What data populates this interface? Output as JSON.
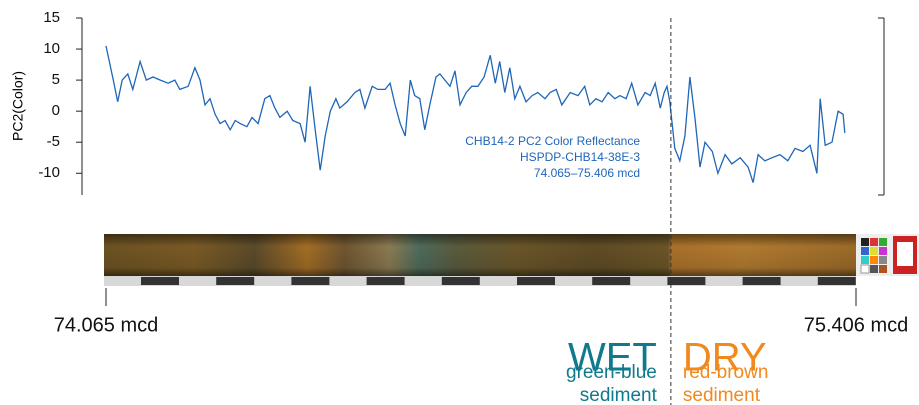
{
  "chart_data": {
    "type": "line",
    "y_label": "PC2(Color)",
    "color": "#1f66b8",
    "x": [
      74.065,
      74.078,
      74.086,
      74.094,
      74.104,
      74.113,
      74.126,
      74.137,
      74.149,
      74.162,
      74.176,
      74.188,
      74.197,
      74.212,
      74.224,
      74.233,
      74.242,
      74.251,
      74.26,
      74.269,
      74.278,
      74.287,
      74.296,
      74.305,
      74.317,
      74.326,
      74.337,
      74.349,
      74.358,
      74.367,
      74.376,
      74.389,
      74.399,
      74.412,
      74.421,
      74.43,
      74.439,
      74.448,
      74.457,
      74.466,
      74.476,
      74.483,
      74.496,
      74.51,
      74.519,
      74.528,
      74.541,
      74.551,
      74.564,
      74.573,
      74.582,
      74.591,
      74.6,
      74.609,
      74.617,
      74.626,
      74.635,
      74.644,
      74.655,
      74.662,
      74.671,
      74.68,
      74.689,
      74.698,
      74.709,
      74.719,
      74.73,
      74.741,
      74.752,
      74.761,
      74.769,
      74.778,
      74.787,
      74.796,
      74.805,
      74.816,
      74.827,
      74.837,
      74.85,
      74.859,
      74.87,
      74.88,
      74.895,
      74.909,
      74.921,
      74.93,
      74.941,
      74.952,
      74.963,
      74.975,
      74.984,
      74.995,
      75.005,
      75.016,
      75.029,
      75.038,
      75.047,
      75.056,
      75.063,
      75.068,
      75.073,
      75.082,
      75.091,
      75.1,
      75.109,
      75.118,
      75.127,
      75.136,
      75.149,
      75.159,
      75.172,
      75.184,
      75.199,
      75.213,
      75.222,
      75.231,
      75.243,
      75.256,
      75.27,
      75.284,
      75.297,
      75.311,
      75.324,
      75.336,
      75.342,
      75.351,
      75.363,
      75.374,
      75.383,
      75.386
    ],
    "values": [
      10.5,
      5,
      1.5,
      5,
      6,
      3.5,
      8,
      5,
      5.5,
      5,
      4.5,
      5,
      3.5,
      4,
      7,
      5,
      1,
      2,
      -0.5,
      -2,
      -1.5,
      -3,
      -1.5,
      -2,
      -2.5,
      -1,
      -2,
      2,
      2.5,
      0.5,
      -1,
      0,
      -1.5,
      -2,
      -5,
      4,
      -3,
      -9.5,
      -4,
      0,
      2,
      0.5,
      1.5,
      3,
      3.5,
      0.5,
      4,
      3.5,
      3.5,
      4.5,
      1,
      -2,
      -4,
      5,
      2.5,
      2,
      -3,
      1,
      5.5,
      6,
      5,
      4,
      6.5,
      1,
      3,
      4,
      4,
      5.5,
      9,
      4.5,
      8,
      3,
      7,
      2,
      4,
      1.5,
      2.5,
      3,
      2,
      3,
      3.5,
      1,
      3,
      2.5,
      4,
      1,
      2,
      1.5,
      3,
      2,
      2.5,
      2,
      4.5,
      1,
      3,
      2.5,
      4.5,
      0.5,
      3,
      4,
      1.5,
      -6,
      -8,
      -4,
      5.5,
      -1,
      -9,
      -5,
      -6.5,
      -10,
      -7,
      -8.5,
      -7.5,
      -9,
      -11.5,
      -7,
      -8,
      -7.5,
      -7,
      -8,
      -6,
      -6.5,
      -5.5,
      -10,
      2,
      -5.5,
      -5,
      0,
      -0.5,
      -3.5
    ],
    "ylim": [
      -13.5,
      15
    ],
    "yticks": [
      -10,
      -5,
      0,
      5,
      10,
      15
    ],
    "xlim": [
      74.065,
      75.406
    ],
    "xticks": [
      {
        "value": 74.065,
        "label": "74.065 mcd"
      },
      {
        "value": 75.406,
        "label": "75.406 mcd"
      }
    ],
    "annotation": [
      "CHB14-2 PC2 Color Reflectance",
      "HSPDP-CHB14-38E-3",
      "74.065–75.406 mcd"
    ],
    "boundary": 75.075,
    "wet": {
      "title": "WET",
      "lines": [
        "green-blue",
        "sediment"
      ],
      "color": "#0f7a8c"
    },
    "dry": {
      "title": "DRY",
      "lines": [
        "red-brown",
        "sediment"
      ],
      "color": "#f0891e"
    }
  }
}
